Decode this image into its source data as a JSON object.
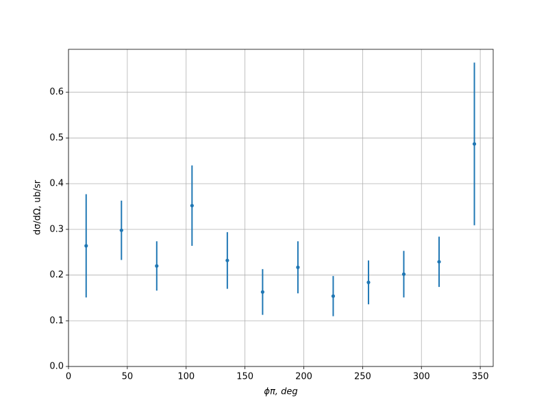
{
  "chart_data": {
    "type": "errorbar",
    "xlabel": "ϕπ, deg",
    "ylabel": "dσ/dΩ, ub/sr",
    "x": [
      15,
      45,
      75,
      105,
      135,
      165,
      195,
      225,
      255,
      285,
      315,
      345
    ],
    "values": [
      0.264,
      0.298,
      0.22,
      0.352,
      0.232,
      0.163,
      0.217,
      0.154,
      0.184,
      0.202,
      0.229,
      0.487
    ],
    "errors": [
      0.113,
      0.065,
      0.054,
      0.088,
      0.062,
      0.05,
      0.057,
      0.044,
      0.048,
      0.051,
      0.055,
      0.178
    ],
    "color": "#1f77b4",
    "xlim": [
      0,
      361
    ],
    "ylim": [
      0,
      0.694
    ],
    "xticks": [
      0,
      50,
      100,
      150,
      200,
      250,
      300,
      350
    ],
    "yticks": [
      {
        "value": 0,
        "label": "0.0"
      },
      {
        "value": 0.1,
        "label": "0.1"
      },
      {
        "value": 0.2,
        "label": "0.2"
      },
      {
        "value": 0.3,
        "label": "0.3"
      },
      {
        "value": 0.4,
        "label": "0.4"
      },
      {
        "value": 0.5,
        "label": "0.5"
      },
      {
        "value": 0.6,
        "label": "0.6"
      }
    ],
    "grid": true
  }
}
